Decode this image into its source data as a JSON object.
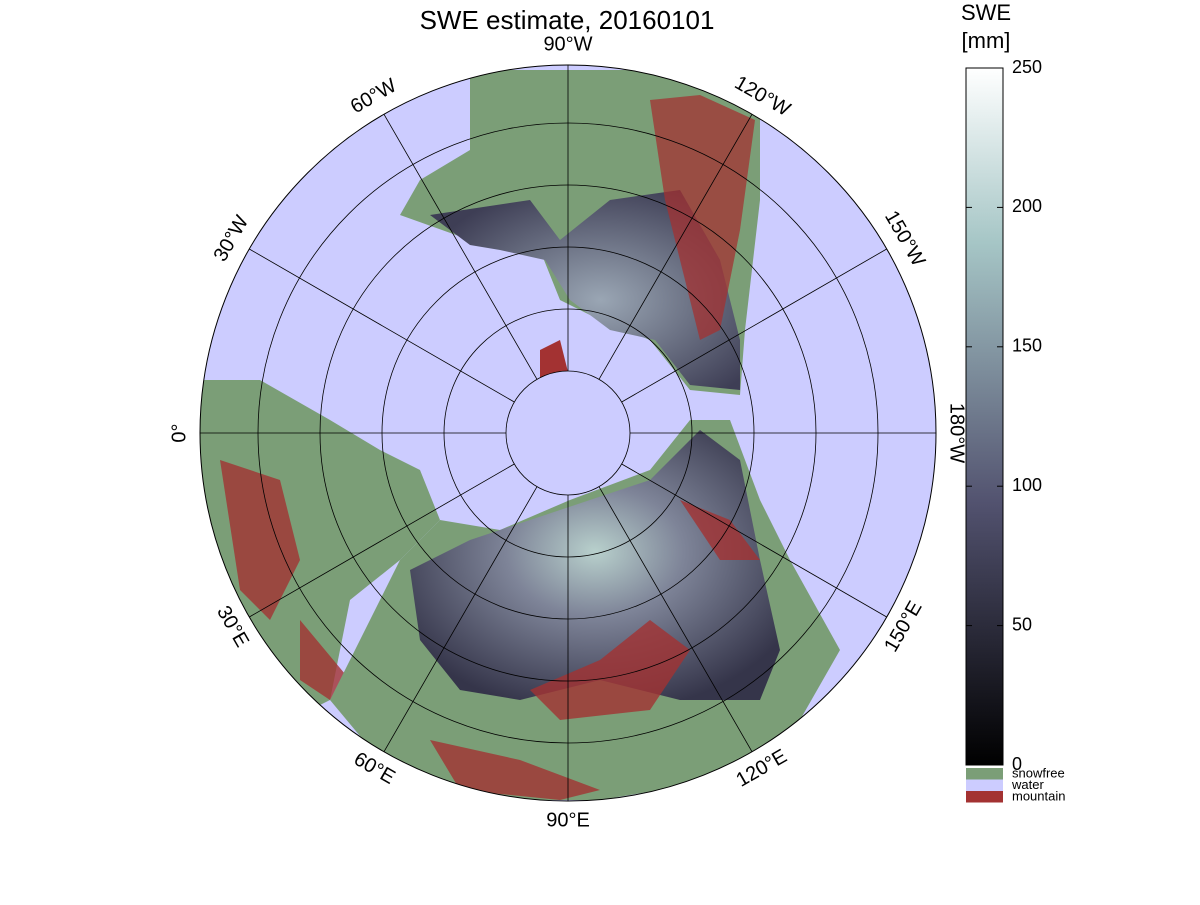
{
  "title": "SWE estimate, 20160101",
  "lon_labels": [
    "90°W",
    "120°W",
    "150°W",
    "180°W",
    "150°E",
    "120°E",
    "90°E",
    "60°E",
    "30°E",
    "0°",
    "30°W",
    "60°W"
  ],
  "colorbar": {
    "label": [
      "SWE",
      "[mm]"
    ],
    "lim": [
      0,
      250
    ],
    "ticks": [
      0,
      50,
      100,
      150,
      200,
      250
    ],
    "categories": [
      {
        "name": "snowfree",
        "color": "#7b9e77"
      },
      {
        "name": "water",
        "color": "#ccccff"
      },
      {
        "name": "mountain",
        "color": "#a33232"
      }
    ]
  }
}
